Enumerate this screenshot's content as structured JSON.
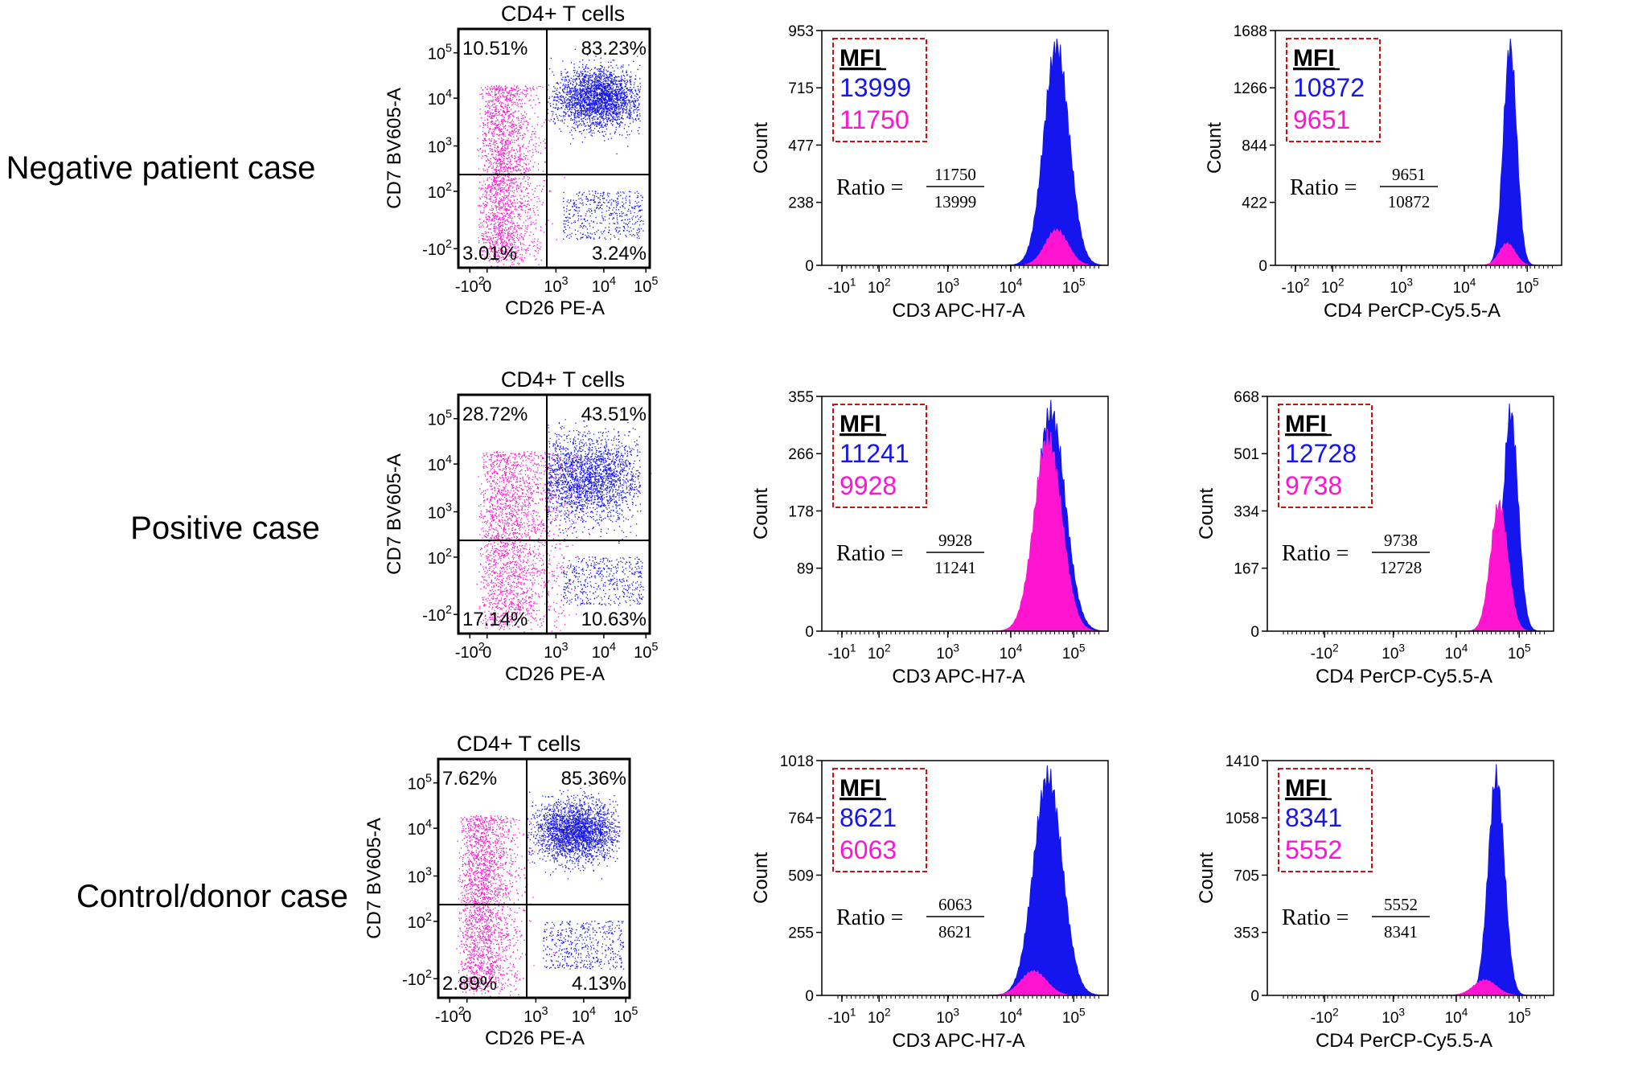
{
  "colors": {
    "positive": "#1515ee",
    "negative": "#ff14d2",
    "box": "#cc1111",
    "axis": "#000000"
  },
  "scatter_plot_title": "CD4+ T cells",
  "mfi_label": "MFI",
  "ratio_label": "Ratio =",
  "chart_data": [
    {
      "type": "scatter",
      "title": "CD4+ T cells",
      "row_label": "Negative patient case",
      "xlabel": "CD26 PE-A",
      "ylabel": "CD7 BV605-A",
      "xticks": [
        "-10^2",
        "0",
        "10^3",
        "10^4",
        "10^5"
      ],
      "yticks": [
        "10^5",
        "10^4",
        "10^3",
        "10^2",
        "-10^2"
      ],
      "quadrants": {
        "upper_left": "10.51%",
        "upper_right": "83.23%",
        "lower_left": "3.01%",
        "lower_right": "3.24%"
      },
      "gate": [
        0.19,
        0.31
      ],
      "core_pos": [
        0.73,
        0.61
      ],
      "spread": 1.0
    },
    {
      "type": "histogram",
      "row_label": "Negative patient case",
      "xlabel": "CD3 APC-H7-A",
      "ylabel": "Count",
      "yticks": [
        "953",
        "715",
        "477",
        "238",
        "0"
      ],
      "xticks": [
        "-10^1",
        "10^2",
        "10^3",
        "10^4",
        "10^5"
      ],
      "mfi": {
        "positive": "13999",
        "negative": "11750"
      },
      "ratio": {
        "numerator": "11750",
        "denominator": "13999"
      },
      "peak": 0.82,
      "width": 0.044,
      "neg_peak": 0.82,
      "neg_height": 0.16,
      "neg_width": 0.04
    },
    {
      "type": "histogram",
      "row_label": "Negative patient case",
      "xlabel": "CD4 PerCP-Cy5.5-A",
      "ylabel": "Count",
      "yticks": [
        "1688",
        "1266",
        "844",
        "422",
        "0"
      ],
      "xticks": [
        "-10^2",
        "10^2",
        "10^3",
        "10^4",
        "10^5"
      ],
      "mfi": {
        "positive": "10872",
        "negative": "9651"
      },
      "ratio": {
        "numerator": "9651",
        "denominator": "10872"
      },
      "peak": 0.82,
      "width": 0.023,
      "neg_peak": 0.81,
      "neg_height": 0.1,
      "neg_width": 0.028
    },
    {
      "type": "scatter",
      "title": "CD4+ T cells",
      "row_label": "Positive case",
      "xlabel": "CD26 PE-A",
      "ylabel": "CD7 BV605-A",
      "xticks": [
        "-10^2",
        "0",
        "10^3",
        "10^4",
        "10^5"
      ],
      "yticks": [
        "10^5",
        "10^4",
        "10^3",
        "10^2",
        "-10^2"
      ],
      "quadrants": {
        "upper_left": "28.72%",
        "upper_right": "43.51%",
        "lower_left": "17.14%",
        "lower_right": "10.63%"
      },
      "gate": [
        0.38,
        0.41
      ],
      "core_pos": [
        0.67,
        0.55
      ],
      "spread": 1.5
    },
    {
      "type": "histogram",
      "row_label": "Positive case",
      "xlabel": "CD3 APC-H7-A",
      "ylabel": "Count",
      "yticks": [
        "355",
        "266",
        "178",
        "89",
        "0"
      ],
      "xticks": [
        "-10^1",
        "10^2",
        "10^3",
        "10^4",
        "10^5"
      ],
      "mfi": {
        "positive": "11241",
        "negative": "9928"
      },
      "ratio": {
        "numerator": "9928",
        "denominator": "11241"
      },
      "peak": 0.8,
      "width": 0.05,
      "neg_peak": 0.79,
      "neg_height": 0.88,
      "neg_width": 0.048
    },
    {
      "type": "histogram",
      "row_label": "Positive case",
      "xlabel": "CD4 PerCP-Cy5.5-A",
      "ylabel": "Count",
      "yticks": [
        "668",
        "501",
        "334",
        "167",
        "0"
      ],
      "xticks": [
        "-10^2",
        "10^3",
        "10^4",
        "10^5"
      ],
      "mfi": {
        "positive": "12728",
        "negative": "9738"
      },
      "ratio": {
        "numerator": "9738",
        "denominator": "12728"
      },
      "peak": 0.85,
      "width": 0.026,
      "neg_peak": 0.81,
      "neg_height": 0.58,
      "neg_width": 0.03
    },
    {
      "type": "scatter",
      "title": "CD4+ T cells",
      "row_label": "Control/donor case",
      "xlabel": "CD26 PE-A",
      "ylabel": "CD7 BV605-A",
      "xticks": [
        "-10^2",
        "0",
        "10^3",
        "10^4",
        "10^5"
      ],
      "yticks": [
        "10^5",
        "10^4",
        "10^3",
        "10^2",
        "-10^2"
      ],
      "quadrants": {
        "upper_left": "7.62%",
        "upper_right": "85.36%",
        "lower_left": "2.89%",
        "lower_right": "4.13%"
      },
      "gate": [
        0.17,
        0.3
      ],
      "core_pos": [
        0.72,
        0.6
      ],
      "spread": 1.0
    },
    {
      "type": "histogram",
      "row_label": "Control/donor case",
      "xlabel": "CD3 APC-H7-A",
      "ylabel": "Count",
      "yticks": [
        "1018",
        "764",
        "509",
        "255",
        "0"
      ],
      "xticks": [
        "-10^1",
        "10^2",
        "10^3",
        "10^4",
        "10^5"
      ],
      "mfi": {
        "positive": "8621",
        "negative": "6063"
      },
      "ratio": {
        "numerator": "6063",
        "denominator": "8621"
      },
      "peak": 0.79,
      "width": 0.05,
      "neg_peak": 0.74,
      "neg_height": 0.11,
      "neg_width": 0.045
    },
    {
      "type": "histogram",
      "row_label": "Control/donor case",
      "xlabel": "CD4 PerCP-Cy5.5-A",
      "ylabel": "Count",
      "yticks": [
        "1410",
        "1058",
        "705",
        "353",
        "0"
      ],
      "xticks": [
        "-10^2",
        "10^3",
        "10^4",
        "10^5"
      ],
      "mfi": {
        "positive": "8341",
        "negative": "5552"
      },
      "ratio": {
        "numerator": "5552",
        "denominator": "8341"
      },
      "peak": 0.8,
      "width": 0.028,
      "neg_peak": 0.76,
      "neg_height": 0.07,
      "neg_width": 0.04
    }
  ]
}
